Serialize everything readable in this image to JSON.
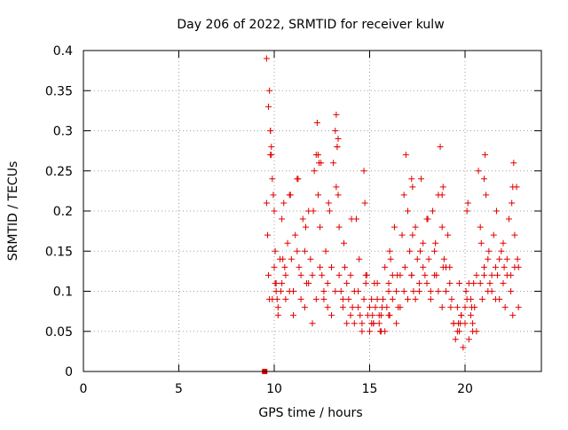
{
  "chart_data": {
    "type": "scatter",
    "title": "Day 206 of 2022, SRMTID for receiver kulw",
    "xlabel": "GPS time / hours",
    "ylabel": "SRMTID / TECUs",
    "xlim": [
      0,
      24
    ],
    "ylim": [
      0,
      0.4
    ],
    "xticks": [
      0,
      5,
      10,
      15,
      20
    ],
    "xtick_labels": [
      "0",
      "5",
      "10",
      "15",
      "20"
    ],
    "yticks": [
      0,
      0.05,
      0.1,
      0.15,
      0.2,
      0.25,
      0.3,
      0.35,
      0.4
    ],
    "ytick_labels": [
      "0",
      "0.05",
      "0.1",
      "0.15",
      "0.2",
      "0.25",
      "0.3",
      "0.35",
      "0.4"
    ],
    "grid": true,
    "marker": "plus",
    "color": "#e00000",
    "zero_marker": {
      "x": 9.5,
      "y": 0
    },
    "series": [
      {
        "name": "SRMTID",
        "x": [
          9.6,
          9.65,
          9.7,
          9.75,
          9.8,
          9.85,
          9.9,
          9.95,
          10.0,
          10.05,
          10.1,
          10.15,
          10.2,
          10.3,
          10.35,
          10.4,
          10.5,
          10.55,
          10.6,
          10.7,
          10.8,
          10.9,
          11.0,
          11.1,
          11.2,
          11.3,
          11.4,
          11.5,
          11.6,
          11.7,
          11.8,
          11.9,
          12.0,
          12.1,
          12.2,
          12.25,
          12.3,
          12.4,
          12.5,
          12.6,
          12.7,
          12.8,
          12.9,
          13.0,
          13.1,
          13.2,
          13.25,
          13.3,
          13.35,
          13.4,
          13.5,
          13.6,
          13.7,
          13.8,
          13.9,
          14.0,
          14.1,
          14.2,
          14.3,
          14.4,
          14.5,
          14.6,
          14.7,
          14.8,
          14.9,
          15.0,
          15.1,
          15.2,
          15.3,
          15.4,
          15.5,
          15.6,
          15.7,
          15.8,
          15.9,
          16.0,
          16.1,
          16.2,
          16.3,
          16.4,
          16.5,
          16.6,
          16.7,
          16.8,
          16.9,
          17.0,
          17.1,
          17.2,
          17.3,
          17.4,
          17.5,
          17.6,
          17.7,
          17.8,
          17.9,
          18.0,
          18.1,
          18.2,
          18.3,
          18.4,
          18.5,
          18.6,
          18.7,
          18.8,
          18.9,
          19.0,
          19.1,
          19.2,
          19.3,
          19.4,
          19.5,
          19.6,
          19.7,
          19.8,
          19.9,
          20.0,
          20.1,
          20.2,
          20.3,
          20.4,
          20.5,
          20.6,
          20.7,
          20.8,
          20.9,
          21.0,
          21.1,
          21.2,
          21.3,
          21.4,
          21.5,
          21.6,
          21.7,
          21.8,
          21.9,
          22.0,
          22.1,
          22.2,
          22.3,
          22.4,
          22.5,
          22.6,
          22.7,
          22.8,
          9.6,
          9.7,
          9.8,
          9.9,
          10.0,
          10.1,
          10.2,
          10.4,
          10.6,
          10.8,
          11.0,
          11.2,
          11.4,
          11.6,
          11.8,
          12.0,
          12.2,
          12.4,
          12.6,
          12.8,
          13.0,
          13.2,
          13.4,
          13.6,
          13.8,
          14.0,
          14.2,
          14.4,
          14.6,
          14.8,
          15.0,
          15.2,
          15.4,
          15.6,
          15.8,
          16.0,
          16.2,
          16.4,
          16.6,
          16.8,
          17.0,
          17.2,
          17.4,
          17.6,
          17.8,
          18.0,
          18.2,
          18.4,
          18.6,
          18.8,
          19.0,
          19.2,
          19.4,
          19.6,
          19.8,
          20.0,
          20.2,
          20.4,
          20.6,
          20.8,
          21.0,
          21.2,
          21.4,
          21.6,
          21.8,
          22.0,
          22.2,
          22.4,
          22.6,
          22.8,
          9.75,
          10.05,
          10.45,
          10.85,
          11.25,
          11.65,
          12.05,
          12.45,
          12.85,
          13.25,
          13.65,
          14.05,
          14.45,
          14.85,
          15.25,
          15.65,
          16.05,
          16.45,
          16.85,
          17.25,
          17.65,
          18.05,
          18.45,
          18.85,
          19.25,
          19.65,
          20.05,
          20.45,
          20.85,
          21.25,
          21.65,
          22.05,
          22.45,
          22.75,
          13.3,
          13.35,
          12.3,
          12.35,
          17.2,
          17.25,
          18.8,
          18.85,
          20.1,
          20.15,
          21.0,
          21.05,
          22.5,
          22.55,
          9.8,
          9.85,
          14.7,
          14.75,
          16.0,
          16.05,
          19.7,
          19.75,
          20.3,
          20.35,
          15.1,
          15.15,
          15.5,
          15.55
        ],
        "y": [
          0.21,
          0.17,
          0.12,
          0.35,
          0.3,
          0.28,
          0.24,
          0.22,
          0.2,
          0.15,
          0.11,
          0.09,
          0.07,
          0.14,
          0.1,
          0.19,
          0.21,
          0.13,
          0.09,
          0.16,
          0.22,
          0.14,
          0.1,
          0.17,
          0.24,
          0.13,
          0.09,
          0.19,
          0.15,
          0.11,
          0.2,
          0.14,
          0.12,
          0.25,
          0.27,
          0.31,
          0.22,
          0.18,
          0.12,
          0.09,
          0.15,
          0.11,
          0.2,
          0.13,
          0.26,
          0.3,
          0.32,
          0.28,
          0.22,
          0.18,
          0.1,
          0.08,
          0.13,
          0.06,
          0.09,
          0.12,
          0.08,
          0.06,
          0.19,
          0.1,
          0.07,
          0.05,
          0.09,
          0.12,
          0.07,
          0.05,
          0.09,
          0.06,
          0.08,
          0.11,
          0.07,
          0.05,
          0.09,
          0.13,
          0.08,
          0.1,
          0.14,
          0.12,
          0.18,
          0.1,
          0.08,
          0.12,
          0.17,
          0.22,
          0.27,
          0.2,
          0.15,
          0.12,
          0.1,
          0.18,
          0.14,
          0.11,
          0.24,
          0.16,
          0.12,
          0.19,
          0.14,
          0.1,
          0.2,
          0.15,
          0.12,
          0.22,
          0.28,
          0.18,
          0.14,
          0.1,
          0.17,
          0.13,
          0.09,
          0.06,
          0.04,
          0.08,
          0.05,
          0.07,
          0.03,
          0.06,
          0.09,
          0.11,
          0.07,
          0.05,
          0.08,
          0.12,
          0.25,
          0.18,
          0.09,
          0.12,
          0.22,
          0.14,
          0.11,
          0.1,
          0.17,
          0.13,
          0.12,
          0.09,
          0.15,
          0.11,
          0.08,
          0.14,
          0.19,
          0.12,
          0.07,
          0.17,
          0.23,
          0.13,
          0.39,
          0.33,
          0.27,
          0.09,
          0.13,
          0.1,
          0.08,
          0.11,
          0.12,
          0.1,
          0.07,
          0.15,
          0.12,
          0.08,
          0.11,
          0.06,
          0.09,
          0.13,
          0.1,
          0.08,
          0.07,
          0.1,
          0.12,
          0.09,
          0.11,
          0.07,
          0.1,
          0.08,
          0.06,
          0.11,
          0.08,
          0.06,
          0.09,
          0.07,
          0.05,
          0.07,
          0.09,
          0.06,
          0.08,
          0.1,
          0.09,
          0.12,
          0.09,
          0.1,
          0.13,
          0.11,
          0.09,
          0.12,
          0.1,
          0.08,
          0.13,
          0.11,
          0.06,
          0.05,
          0.07,
          0.08,
          0.04,
          0.06,
          0.05,
          0.11,
          0.13,
          0.1,
          0.12,
          0.09,
          0.14,
          0.16,
          0.12,
          0.1,
          0.13,
          0.08,
          0.09,
          0.11,
          0.14,
          0.22,
          0.24,
          0.18,
          0.2,
          0.26,
          0.21,
          0.23,
          0.16,
          0.19,
          0.14,
          0.12,
          0.11,
          0.08,
          0.15,
          0.12,
          0.13,
          0.17,
          0.15,
          0.19,
          0.16,
          0.13,
          0.08,
          0.06,
          0.1,
          0.11,
          0.16,
          0.15,
          0.2,
          0.13,
          0.21,
          0.14,
          0.28,
          0.29,
          0.27,
          0.26,
          0.24,
          0.23,
          0.22,
          0.23,
          0.2,
          0.21,
          0.24,
          0.27,
          0.23,
          0.26,
          0.3,
          0.27,
          0.25,
          0.21,
          0.11,
          0.07,
          0.11,
          0.06,
          0.09,
          0.08,
          0.06,
          0.07,
          0.06,
          0.05
        ]
      }
    ]
  }
}
